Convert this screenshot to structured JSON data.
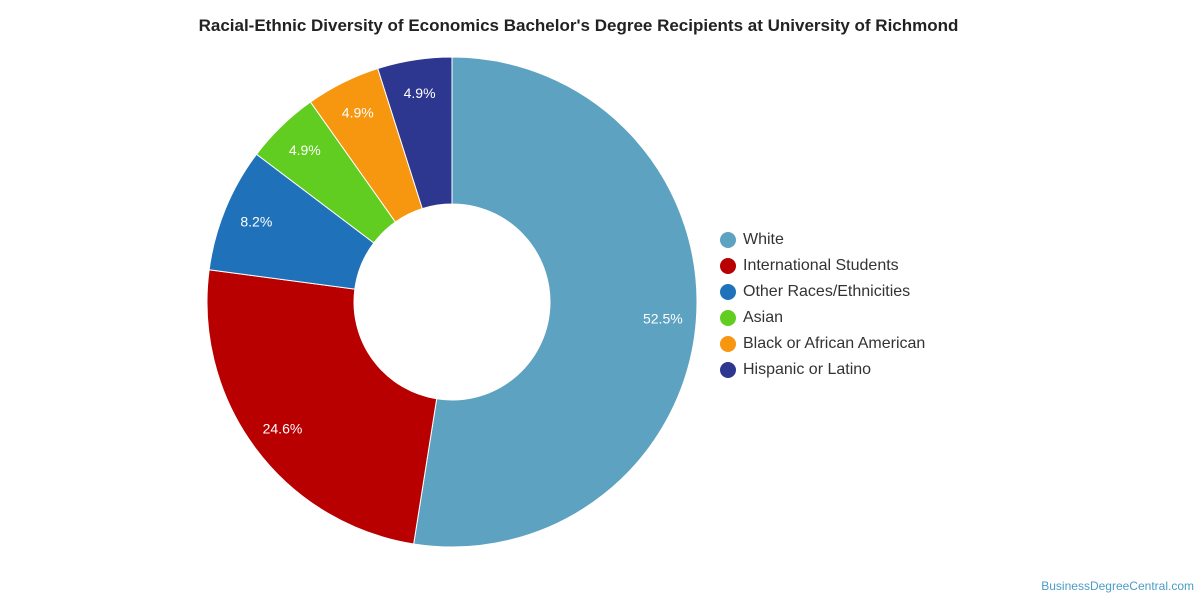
{
  "chart_data": {
    "type": "pie",
    "title": "Racial-Ethnic Diversity of Economics Bachelor's Degree Recipients at University of Richmond",
    "categories": [
      "White",
      "International Students",
      "Other Races/Ethnicities",
      "Asian",
      "Black or African American",
      "Hispanic or Latino"
    ],
    "values": [
      52.5,
      24.6,
      8.2,
      4.9,
      4.9,
      4.9
    ],
    "labels": [
      "52.5%",
      "24.6%",
      "8.2%",
      "4.9%",
      "4.9%",
      "4.9%"
    ],
    "colors": [
      "#5da2c0",
      "#b80000",
      "#1f72ba",
      "#62cd21",
      "#f7960f",
      "#2e3790"
    ],
    "donut": true,
    "legend_position": "right"
  },
  "source": "BusinessDegreeCentral.com"
}
